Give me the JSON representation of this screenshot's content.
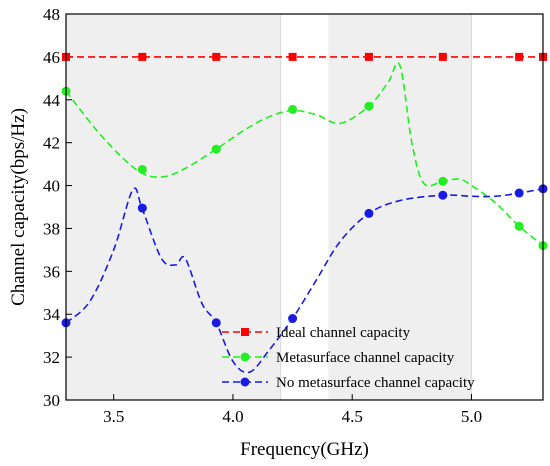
{
  "chart_data": {
    "type": "line",
    "xlabel": "Frequency(GHz)",
    "ylabel": "Channel capacity(bps/Hz)",
    "xlim": [
      3.3,
      5.3
    ],
    "ylim": [
      30,
      48
    ],
    "x_ticks": [
      3.5,
      4.0,
      4.5,
      5.0
    ],
    "x_tick_labels": [
      "3.5",
      "4.0",
      "4.5",
      "5.0"
    ],
    "y_ticks": [
      30,
      32,
      34,
      36,
      38,
      40,
      42,
      44,
      46,
      48
    ],
    "y_tick_labels": [
      "30",
      "32",
      "34",
      "36",
      "38",
      "40",
      "42",
      "44",
      "46",
      "48"
    ],
    "shaded_bands": [
      [
        3.3,
        4.2
      ],
      [
        4.4,
        5.0
      ]
    ],
    "legend_position": "bottom-right",
    "series": [
      {
        "name": "Ideal channel capacity",
        "color": "#ff0000",
        "marker": "square",
        "style": "dashed",
        "x": [
          3.3,
          5.3
        ],
        "y": [
          46.0,
          46.0
        ],
        "marker_x": [
          3.3,
          3.62,
          3.93,
          4.25,
          4.57,
          4.88,
          5.2,
          5.3
        ],
        "marker_y": [
          46.0,
          46.0,
          46.0,
          46.0,
          46.0,
          46.0,
          46.0,
          46.0
        ]
      },
      {
        "name": "Metasurface channel capacity",
        "color": "#22ee22",
        "marker": "circle",
        "style": "dashed",
        "x": [
          3.3,
          3.45,
          3.6,
          3.7,
          3.8,
          3.93,
          4.05,
          4.15,
          4.25,
          4.35,
          4.45,
          4.57,
          4.65,
          4.7,
          4.75,
          4.8,
          4.88,
          4.95,
          5.0,
          5.1,
          5.2,
          5.3
        ],
        "y": [
          44.4,
          42.3,
          40.7,
          40.4,
          40.8,
          41.7,
          42.6,
          43.2,
          43.5,
          43.3,
          42.9,
          43.7,
          44.8,
          45.6,
          42.0,
          40.1,
          40.2,
          40.3,
          40.0,
          39.2,
          38.1,
          37.2
        ],
        "marker_x": [
          3.3,
          3.62,
          3.93,
          4.25,
          4.57,
          4.88,
          5.2,
          5.3
        ],
        "marker_y": [
          44.4,
          40.75,
          41.7,
          43.55,
          43.7,
          40.2,
          38.1,
          37.2
        ]
      },
      {
        "name": "No metasurface channel capacity",
        "color": "#1a1ae6",
        "marker": "circle",
        "style": "dashed",
        "x": [
          3.3,
          3.4,
          3.5,
          3.58,
          3.62,
          3.7,
          3.76,
          3.8,
          3.87,
          3.93,
          4.0,
          4.07,
          4.15,
          4.25,
          4.35,
          4.45,
          4.57,
          4.7,
          4.88,
          5.0,
          5.1,
          5.2,
          5.3
        ],
        "y": [
          33.6,
          34.6,
          37.0,
          39.8,
          38.9,
          36.6,
          36.3,
          36.6,
          34.5,
          33.6,
          31.8,
          31.3,
          32.3,
          33.8,
          35.6,
          37.4,
          38.7,
          39.3,
          39.55,
          39.5,
          39.5,
          39.65,
          39.85
        ],
        "marker_x": [
          3.3,
          3.62,
          3.93,
          4.25,
          4.57,
          4.88,
          5.2,
          5.3
        ],
        "marker_y": [
          33.6,
          38.95,
          33.6,
          33.8,
          38.7,
          39.55,
          39.65,
          39.85
        ]
      }
    ]
  }
}
